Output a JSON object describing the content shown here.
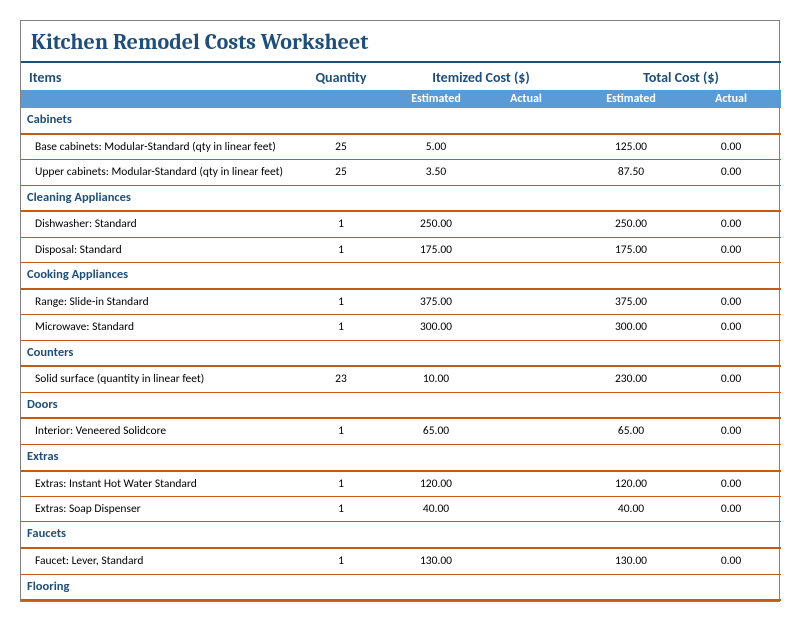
{
  "title": "Kitchen Remodel Costs Worksheet",
  "headers": {
    "items": "Items",
    "quantity": "Quantity",
    "itemized": "Itemized Cost ($)",
    "total": "Total Cost ($)",
    "estimated": "Estimated",
    "actual": "Actual"
  },
  "colors": {
    "title": "#1f4e79",
    "header_bg": "#5b9bd5",
    "header_fg": "#ffffff",
    "rule_thick": "#c55a11",
    "rule_thin": "#c55a11",
    "text": "#000000"
  },
  "categories": [
    {
      "name": "Cabinets",
      "rows": [
        {
          "name": "Base cabinets: Modular-Standard (qty in linear feet)",
          "qty": "25",
          "est_unit": "5.00",
          "act_unit": "",
          "est_total": "125.00",
          "act_total": "0.00"
        },
        {
          "name": "Upper cabinets: Modular-Standard (qty in linear feet)",
          "qty": "25",
          "est_unit": "3.50",
          "act_unit": "",
          "est_total": "87.50",
          "act_total": "0.00"
        }
      ]
    },
    {
      "name": "Cleaning Appliances",
      "rows": [
        {
          "name": "Dishwasher: Standard",
          "qty": "1",
          "est_unit": "250.00",
          "act_unit": "",
          "est_total": "250.00",
          "act_total": "0.00"
        },
        {
          "name": "Disposal: Standard",
          "qty": "1",
          "est_unit": "175.00",
          "act_unit": "",
          "est_total": "175.00",
          "act_total": "0.00"
        }
      ]
    },
    {
      "name": "Cooking Appliances",
      "rows": [
        {
          "name": "Range: Slide-in Standard",
          "qty": "1",
          "est_unit": "375.00",
          "act_unit": "",
          "est_total": "375.00",
          "act_total": "0.00"
        },
        {
          "name": "Microwave: Standard",
          "qty": "1",
          "est_unit": "300.00",
          "act_unit": "",
          "est_total": "300.00",
          "act_total": "0.00"
        }
      ]
    },
    {
      "name": "Counters",
      "rows": [
        {
          "name": "Solid surface (quantity in linear feet)",
          "qty": "23",
          "est_unit": "10.00",
          "act_unit": "",
          "est_total": "230.00",
          "act_total": "0.00"
        }
      ]
    },
    {
      "name": "Doors",
      "rows": [
        {
          "name": "Interior: Veneered Solidcore",
          "qty": "1",
          "est_unit": "65.00",
          "act_unit": "",
          "est_total": "65.00",
          "act_total": "0.00"
        }
      ]
    },
    {
      "name": "Extras",
      "rows": [
        {
          "name": "Extras: Instant Hot Water Standard",
          "qty": "1",
          "est_unit": "120.00",
          "act_unit": "",
          "est_total": "120.00",
          "act_total": "0.00"
        },
        {
          "name": "Extras: Soap Dispenser",
          "qty": "1",
          "est_unit": "40.00",
          "act_unit": "",
          "est_total": "40.00",
          "act_total": "0.00"
        }
      ]
    },
    {
      "name": "Faucets",
      "rows": [
        {
          "name": "Faucet: Lever, Standard",
          "qty": "1",
          "est_unit": "130.00",
          "act_unit": "",
          "est_total": "130.00",
          "act_total": "0.00"
        }
      ]
    },
    {
      "name": "Flooring",
      "rows": []
    }
  ]
}
